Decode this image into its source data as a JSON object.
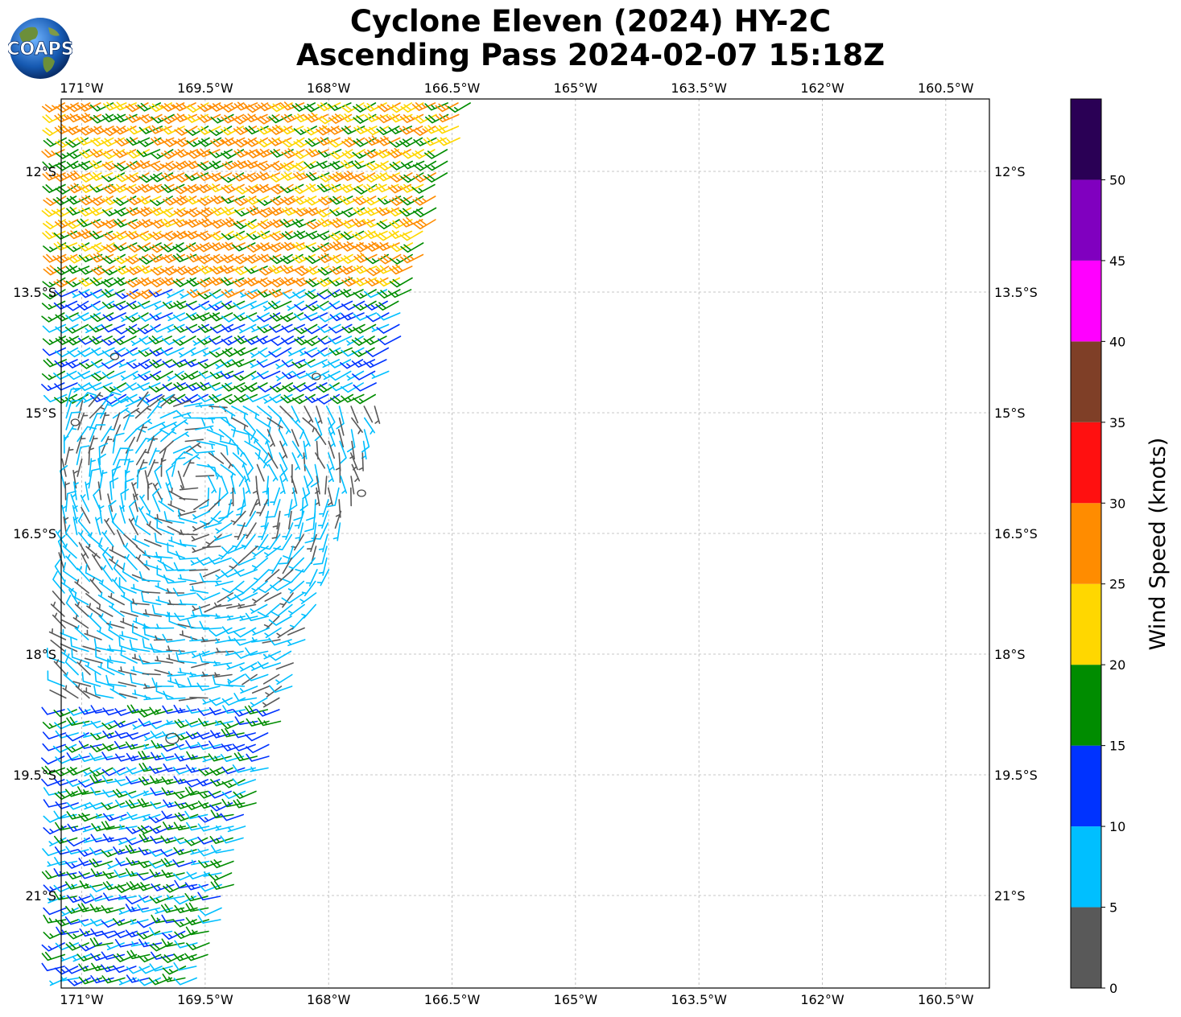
{
  "title": {
    "line1": "Cyclone Eleven (2024) HY-2C",
    "line2": "Ascending Pass 2024-02-07 15:18Z"
  },
  "logo": {
    "text": "COAPS",
    "icon": "globe-logo-icon"
  },
  "map": {
    "lon_range": [
      -171.25,
      -159.97
    ],
    "lat_range": [
      -11.1,
      -22.15
    ],
    "lon_ticks": [
      {
        "value": -171.0,
        "label": "171°W"
      },
      {
        "value": -169.5,
        "label": "169.5°W"
      },
      {
        "value": -168.0,
        "label": "168°W"
      },
      {
        "value": -166.5,
        "label": "166.5°W"
      },
      {
        "value": -165.0,
        "label": "165°W"
      },
      {
        "value": -163.5,
        "label": "163.5°W"
      },
      {
        "value": -162.0,
        "label": "162°W"
      },
      {
        "value": -160.5,
        "label": "160.5°W"
      }
    ],
    "lat_ticks": [
      {
        "value": -12.0,
        "label": "12°S"
      },
      {
        "value": -13.5,
        "label": "13.5°S"
      },
      {
        "value": -15.0,
        "label": "15°S"
      },
      {
        "value": -16.5,
        "label": "16.5°S"
      },
      {
        "value": -18.0,
        "label": "18°S"
      },
      {
        "value": -19.5,
        "label": "19.5°S"
      },
      {
        "value": -21.0,
        "label": "21°S"
      }
    ],
    "gridlines": true,
    "swath": {
      "top_east_lon": -166.25,
      "bottom_east_lon": -169.55,
      "spacing_deg": 0.145
    },
    "islands": [
      {
        "name": "Rose Atoll",
        "lon": -168.15,
        "lat": -14.55
      },
      {
        "name": "Swains Island",
        "lon": -171.08,
        "lat": -15.12
      },
      {
        "name": "Tau Island",
        "lon": -170.6,
        "lat": -14.3
      },
      {
        "name": "Rarotonga-area island",
        "lon": -169.9,
        "lat": -19.05
      },
      {
        "name": "Atoll",
        "lon": -167.6,
        "lat": -16.0
      }
    ]
  },
  "colorbar": {
    "label": "Wind Speed (knots)",
    "bounds": [
      0,
      5,
      10,
      15,
      20,
      25,
      30,
      35,
      40,
      45,
      50,
      55
    ],
    "tick_labels": [
      "0",
      "5",
      "10",
      "15",
      "20",
      "25",
      "30",
      "35",
      "40",
      "45",
      "50"
    ],
    "colors": [
      "#595959",
      "#00bfff",
      "#0033ff",
      "#008c00",
      "#ffd700",
      "#ff8c00",
      "#ff1010",
      "#7f3f27",
      "#ff00ff",
      "#8000bf",
      "#2a0055"
    ]
  },
  "wind_regions": [
    {
      "lat_min": -11.1,
      "lat_max": -13.4,
      "speeds": [
        22,
        27,
        18
      ]
    },
    {
      "lat_min": -13.4,
      "lat_max": -14.8,
      "speeds": [
        12,
        17,
        8
      ]
    },
    {
      "lat_min": -14.8,
      "lat_max": -18.6,
      "speeds": [
        7,
        3,
        8
      ]
    },
    {
      "lat_min": -18.6,
      "lat_max": -22.2,
      "speeds": [
        12,
        8,
        17
      ]
    }
  ]
}
